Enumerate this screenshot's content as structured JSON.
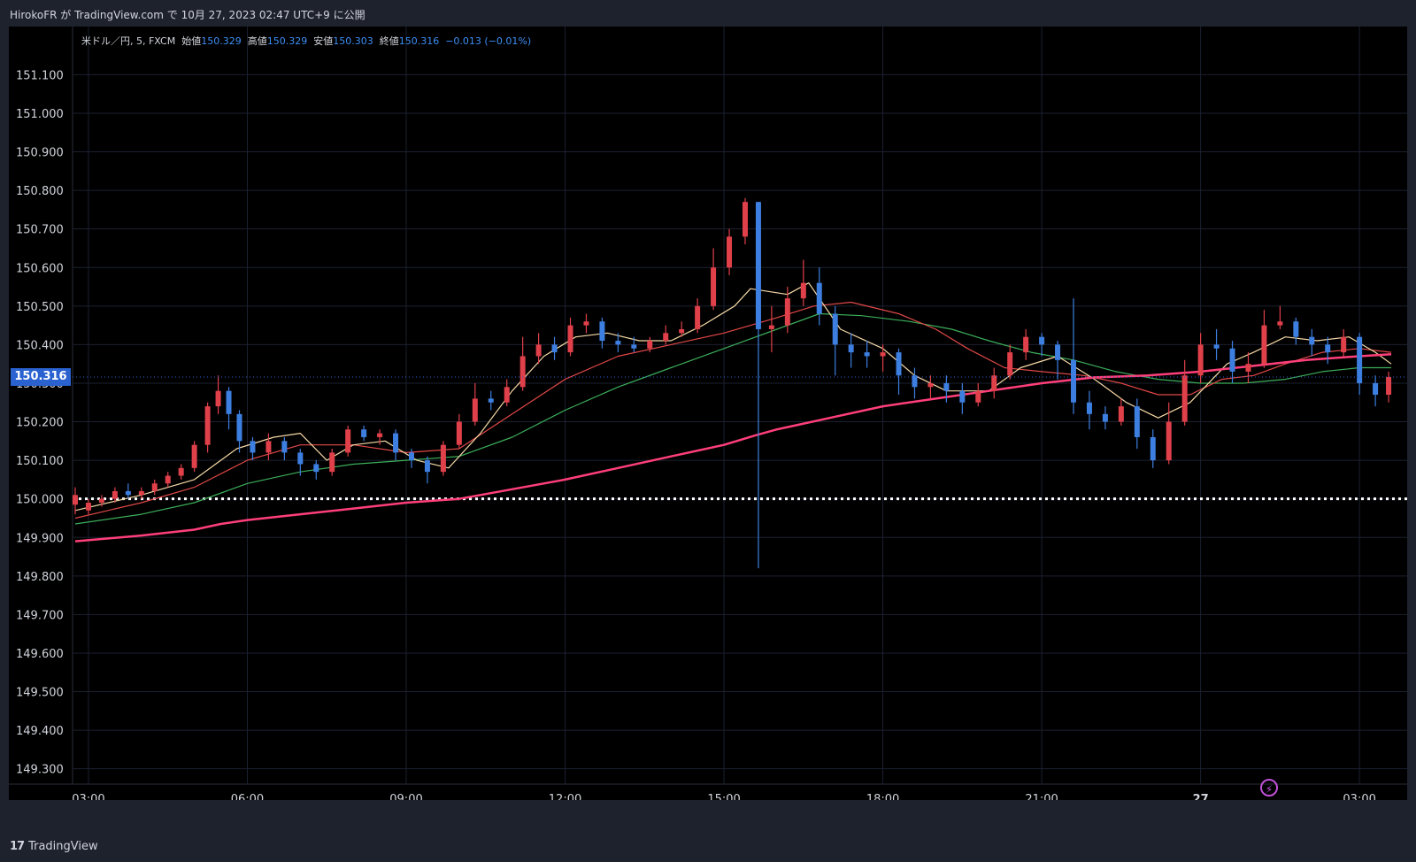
{
  "header": {
    "published_text": "HirokoFR が TradingView.com で 10月 27, 2023 02:47 UTC+9 に公開"
  },
  "legend": {
    "symbol": "米ドル／円, 5, FXCM",
    "open_label": "始値",
    "open_value": "150.329",
    "high_label": "高値",
    "high_value": "150.329",
    "low_label": "安値",
    "low_value": "150.303",
    "close_label": "終値",
    "close_value": "150.316",
    "change": "−0.013 (−0.01%)"
  },
  "current_price_label": "150.316",
  "footer": {
    "brand": "TradingView",
    "logo": "17"
  },
  "colors": {
    "up": "#e0404a",
    "down": "#3d7fe0",
    "ma_fast": "#f5d8a6",
    "ma_mid": "#e04848",
    "ma_slow": "#3cae5a",
    "ma_long": "#ff3f7a",
    "level": "#ffffff"
  },
  "chart_data": {
    "type": "candlestick",
    "yaxis_ticks": [
      "151.100",
      "151.000",
      "150.900",
      "150.800",
      "150.700",
      "150.600",
      "150.500",
      "150.400",
      "150.300",
      "150.200",
      "150.100",
      "150.000",
      "149.900",
      "149.800",
      "149.700",
      "149.600",
      "149.500",
      "149.400",
      "149.300"
    ],
    "xaxis_ticks": [
      "03:00",
      "06:00",
      "09:00",
      "12:00",
      "15:00",
      "18:00",
      "21:00",
      "27",
      "03:00"
    ],
    "ylim": [
      149.235,
      151.195
    ],
    "xlim_hours": [
      2.7,
      27.9
    ],
    "horizontal_level": 150.0,
    "current_price": 150.316,
    "candles": [
      [
        2.75,
        149.985,
        150.01,
        149.96,
        150.03
      ],
      [
        3.0,
        149.97,
        149.99,
        149.96,
        150.0
      ],
      [
        3.25,
        149.99,
        150.0,
        149.98,
        150.01
      ],
      [
        3.5,
        150.0,
        150.02,
        149.99,
        150.03
      ],
      [
        3.75,
        150.02,
        150.01,
        150.0,
        150.04
      ],
      [
        4.0,
        150.01,
        150.02,
        150.0,
        150.03
      ],
      [
        4.25,
        150.02,
        150.04,
        150.01,
        150.05
      ],
      [
        4.5,
        150.04,
        150.06,
        150.03,
        150.07
      ],
      [
        4.75,
        150.06,
        150.08,
        150.05,
        150.09
      ],
      [
        5.0,
        150.08,
        150.14,
        150.07,
        150.15
      ],
      [
        5.25,
        150.14,
        150.24,
        150.12,
        150.25
      ],
      [
        5.45,
        150.24,
        150.28,
        150.22,
        150.32
      ],
      [
        5.65,
        150.28,
        150.22,
        150.18,
        150.29
      ],
      [
        5.85,
        150.22,
        150.15,
        150.12,
        150.23
      ],
      [
        6.1,
        150.15,
        150.12,
        150.1,
        150.16
      ],
      [
        6.4,
        150.12,
        150.15,
        150.1,
        150.17
      ],
      [
        6.7,
        150.15,
        150.12,
        150.1,
        150.16
      ],
      [
        7.0,
        150.12,
        150.09,
        150.06,
        150.13
      ],
      [
        7.3,
        150.09,
        150.07,
        150.05,
        150.1
      ],
      [
        7.6,
        150.07,
        150.12,
        150.06,
        150.13
      ],
      [
        7.9,
        150.12,
        150.18,
        150.11,
        150.19
      ],
      [
        8.2,
        150.18,
        150.16,
        150.15,
        150.19
      ],
      [
        8.5,
        150.16,
        150.17,
        150.14,
        150.18
      ],
      [
        8.8,
        150.17,
        150.12,
        150.1,
        150.18
      ],
      [
        9.1,
        150.12,
        150.1,
        150.08,
        150.13
      ],
      [
        9.4,
        150.1,
        150.07,
        150.04,
        150.11
      ],
      [
        9.7,
        150.07,
        150.14,
        150.06,
        150.15
      ],
      [
        10.0,
        150.14,
        150.2,
        150.13,
        150.22
      ],
      [
        10.3,
        150.2,
        150.26,
        150.19,
        150.3
      ],
      [
        10.6,
        150.26,
        150.25,
        150.23,
        150.28
      ],
      [
        10.9,
        150.25,
        150.29,
        150.24,
        150.31
      ],
      [
        11.2,
        150.29,
        150.37,
        150.28,
        150.42
      ],
      [
        11.5,
        150.37,
        150.4,
        150.35,
        150.43
      ],
      [
        11.8,
        150.4,
        150.38,
        150.36,
        150.42
      ],
      [
        12.1,
        150.38,
        150.45,
        150.37,
        150.47
      ],
      [
        12.4,
        150.45,
        150.46,
        150.43,
        150.48
      ],
      [
        12.7,
        150.46,
        150.41,
        150.39,
        150.47
      ],
      [
        13.0,
        150.41,
        150.4,
        150.38,
        150.43
      ],
      [
        13.3,
        150.4,
        150.39,
        150.38,
        150.42
      ],
      [
        13.6,
        150.39,
        150.41,
        150.38,
        150.42
      ],
      [
        13.9,
        150.41,
        150.43,
        150.4,
        150.45
      ],
      [
        14.2,
        150.43,
        150.44,
        150.42,
        150.46
      ],
      [
        14.5,
        150.44,
        150.5,
        150.43,
        150.52
      ],
      [
        14.8,
        150.5,
        150.6,
        150.49,
        150.65
      ],
      [
        15.1,
        150.6,
        150.68,
        150.58,
        150.7
      ],
      [
        15.4,
        150.68,
        150.77,
        150.66,
        150.78
      ],
      [
        15.65,
        150.77,
        150.44,
        149.82,
        150.77
      ],
      [
        15.9,
        150.44,
        150.45,
        150.38,
        150.5
      ],
      [
        16.2,
        150.45,
        150.52,
        150.43,
        150.55
      ],
      [
        16.5,
        150.52,
        150.56,
        150.5,
        150.62
      ],
      [
        16.8,
        150.56,
        150.48,
        150.45,
        150.6
      ],
      [
        17.1,
        150.48,
        150.4,
        150.32,
        150.5
      ],
      [
        17.4,
        150.4,
        150.38,
        150.34,
        150.43
      ],
      [
        17.7,
        150.38,
        150.37,
        150.34,
        150.41
      ],
      [
        18.0,
        150.37,
        150.38,
        150.33,
        150.4
      ],
      [
        18.3,
        150.38,
        150.32,
        150.27,
        150.39
      ],
      [
        18.6,
        150.32,
        150.29,
        150.26,
        150.34
      ],
      [
        18.9,
        150.29,
        150.3,
        150.26,
        150.32
      ],
      [
        19.2,
        150.3,
        150.28,
        150.25,
        150.32
      ],
      [
        19.5,
        150.28,
        150.25,
        150.22,
        150.3
      ],
      [
        19.8,
        150.25,
        150.28,
        150.24,
        150.3
      ],
      [
        20.1,
        150.28,
        150.32,
        150.26,
        150.34
      ],
      [
        20.4,
        150.32,
        150.38,
        150.31,
        150.4
      ],
      [
        20.7,
        150.38,
        150.42,
        150.36,
        150.44
      ],
      [
        21.0,
        150.42,
        150.4,
        150.37,
        150.43
      ],
      [
        21.3,
        150.4,
        150.36,
        150.31,
        150.41
      ],
      [
        21.6,
        150.36,
        150.25,
        150.22,
        150.52
      ],
      [
        21.9,
        150.25,
        150.22,
        150.18,
        150.28
      ],
      [
        22.2,
        150.22,
        150.2,
        150.18,
        150.24
      ],
      [
        22.5,
        150.2,
        150.24,
        150.19,
        150.26
      ],
      [
        22.8,
        150.24,
        150.16,
        150.13,
        150.26
      ],
      [
        23.1,
        150.16,
        150.1,
        150.08,
        150.18
      ],
      [
        23.4,
        150.1,
        150.2,
        150.09,
        150.25
      ],
      [
        23.7,
        150.2,
        150.32,
        150.19,
        150.36
      ],
      [
        24.0,
        150.32,
        150.4,
        150.3,
        150.43
      ],
      [
        24.3,
        150.4,
        150.39,
        150.36,
        150.44
      ],
      [
        24.6,
        150.39,
        150.33,
        150.3,
        150.41
      ],
      [
        24.9,
        150.33,
        150.35,
        150.3,
        150.38
      ],
      [
        25.2,
        150.35,
        150.45,
        150.34,
        150.49
      ],
      [
        25.5,
        150.45,
        150.46,
        150.44,
        150.5
      ],
      [
        25.8,
        150.46,
        150.42,
        150.4,
        150.47
      ],
      [
        26.1,
        150.42,
        150.4,
        150.37,
        150.44
      ],
      [
        26.4,
        150.4,
        150.38,
        150.35,
        150.42
      ],
      [
        26.7,
        150.38,
        150.42,
        150.37,
        150.44
      ],
      [
        27.0,
        150.42,
        150.3,
        150.27,
        150.43
      ],
      [
        27.3,
        150.3,
        150.27,
        150.24,
        150.32
      ],
      [
        27.55,
        150.27,
        150.316,
        150.25,
        150.33
      ]
    ],
    "ma_fast": [
      [
        2.75,
        149.97
      ],
      [
        4,
        150.01
      ],
      [
        5,
        150.05
      ],
      [
        5.8,
        150.13
      ],
      [
        6.5,
        150.16
      ],
      [
        7,
        150.17
      ],
      [
        7.5,
        150.1
      ],
      [
        8,
        150.14
      ],
      [
        8.6,
        150.15
      ],
      [
        9.2,
        150.1
      ],
      [
        9.8,
        150.08
      ],
      [
        10.4,
        150.17
      ],
      [
        11,
        150.28
      ],
      [
        11.6,
        150.37
      ],
      [
        12.2,
        150.42
      ],
      [
        12.8,
        150.43
      ],
      [
        13.4,
        150.41
      ],
      [
        14,
        150.41
      ],
      [
        14.6,
        150.45
      ],
      [
        15.2,
        150.5
      ],
      [
        15.5,
        150.545
      ],
      [
        16.2,
        150.53
      ],
      [
        16.6,
        150.56
      ],
      [
        17.2,
        150.44
      ],
      [
        18,
        150.39
      ],
      [
        18.6,
        150.32
      ],
      [
        19.2,
        150.28
      ],
      [
        20,
        150.28
      ],
      [
        20.6,
        150.34
      ],
      [
        21.3,
        150.37
      ],
      [
        22.0,
        150.31
      ],
      [
        22.6,
        150.25
      ],
      [
        23.2,
        150.21
      ],
      [
        23.8,
        150.25
      ],
      [
        24.5,
        150.35
      ],
      [
        25,
        150.38
      ],
      [
        25.6,
        150.42
      ],
      [
        26.2,
        150.41
      ],
      [
        26.8,
        150.42
      ],
      [
        27.3,
        150.38
      ],
      [
        27.6,
        150.35
      ]
    ],
    "ma_mid": [
      [
        2.75,
        149.95
      ],
      [
        4,
        149.99
      ],
      [
        5,
        150.03
      ],
      [
        6,
        150.1
      ],
      [
        7,
        150.14
      ],
      [
        8,
        150.14
      ],
      [
        9,
        150.12
      ],
      [
        10,
        150.13
      ],
      [
        11,
        150.22
      ],
      [
        12,
        150.31
      ],
      [
        13,
        150.37
      ],
      [
        14,
        150.4
      ],
      [
        15,
        150.43
      ],
      [
        16,
        150.47
      ],
      [
        16.7,
        150.5
      ],
      [
        17.4,
        150.51
      ],
      [
        18.3,
        150.48
      ],
      [
        19,
        150.44
      ],
      [
        19.6,
        150.39
      ],
      [
        20.3,
        150.34
      ],
      [
        21.0,
        150.33
      ],
      [
        21.8,
        150.32
      ],
      [
        22.5,
        150.3
      ],
      [
        23.2,
        150.27
      ],
      [
        23.8,
        150.27
      ],
      [
        24.4,
        150.31
      ],
      [
        25,
        150.32
      ],
      [
        25.6,
        150.35
      ],
      [
        26.3,
        150.38
      ],
      [
        27,
        150.39
      ],
      [
        27.6,
        150.38
      ]
    ],
    "ma_slow": [
      [
        2.75,
        149.935
      ],
      [
        4,
        149.96
      ],
      [
        5,
        149.99
      ],
      [
        6,
        150.04
      ],
      [
        7,
        150.07
      ],
      [
        8,
        150.09
      ],
      [
        9,
        150.1
      ],
      [
        10,
        150.11
      ],
      [
        11,
        150.16
      ],
      [
        12,
        150.23
      ],
      [
        13,
        150.29
      ],
      [
        14,
        150.34
      ],
      [
        15,
        150.39
      ],
      [
        16,
        150.44
      ],
      [
        16.8,
        150.48
      ],
      [
        17.6,
        150.475
      ],
      [
        18.5,
        150.46
      ],
      [
        19.3,
        150.44
      ],
      [
        20.0,
        150.41
      ],
      [
        20.8,
        150.38
      ],
      [
        21.6,
        150.36
      ],
      [
        22.4,
        150.33
      ],
      [
        23.2,
        150.31
      ],
      [
        24.0,
        150.3
      ],
      [
        24.8,
        150.3
      ],
      [
        25.6,
        150.31
      ],
      [
        26.3,
        150.33
      ],
      [
        27,
        150.34
      ],
      [
        27.6,
        150.34
      ]
    ],
    "ma_long": [
      [
        2.75,
        149.89
      ],
      [
        4,
        149.905
      ],
      [
        5,
        149.92
      ],
      [
        5.5,
        149.935
      ],
      [
        6,
        149.945
      ],
      [
        7,
        149.96
      ],
      [
        8,
        149.975
      ],
      [
        9,
        149.99
      ],
      [
        10,
        150.0
      ],
      [
        11,
        150.025
      ],
      [
        12,
        150.05
      ],
      [
        13,
        150.08
      ],
      [
        14,
        150.11
      ],
      [
        15,
        150.14
      ],
      [
        15.6,
        150.165
      ],
      [
        16,
        150.18
      ],
      [
        17,
        150.21
      ],
      [
        18,
        150.24
      ],
      [
        19,
        150.26
      ],
      [
        20,
        150.28
      ],
      [
        21,
        150.3
      ],
      [
        22,
        150.315
      ],
      [
        23,
        150.32
      ],
      [
        24,
        150.33
      ],
      [
        25,
        150.345
      ],
      [
        26,
        150.36
      ],
      [
        27,
        150.37
      ],
      [
        27.6,
        150.375
      ]
    ]
  }
}
